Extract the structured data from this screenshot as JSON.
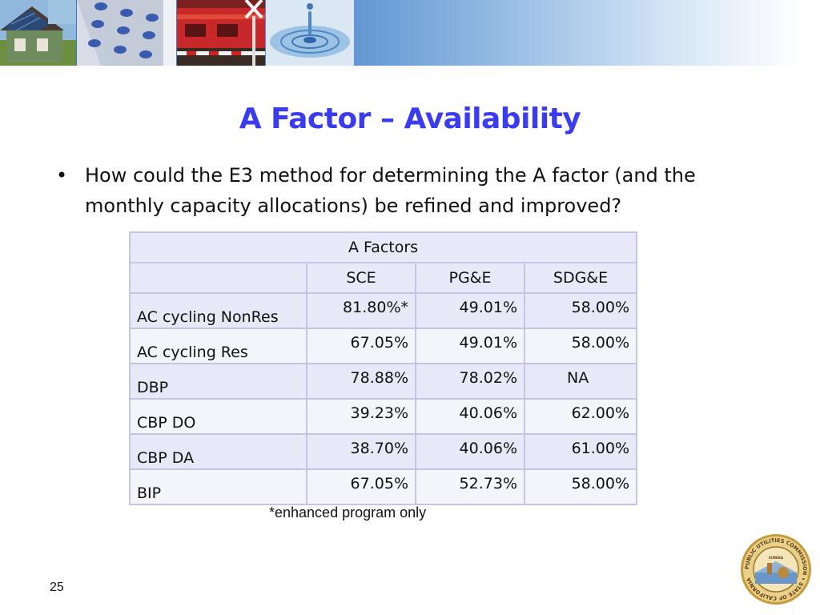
{
  "slide": {
    "title": "A Factor – Availability",
    "bullet": "How could the E3 method for determining the A factor (and the monthly capacity allocations) be refined and improved?",
    "footnote": "*enhanced program only",
    "page_number": "25"
  },
  "table": {
    "caption": "A Factors",
    "columns": [
      "",
      "SCE",
      "PG&E",
      "SDG&E"
    ],
    "rows": [
      {
        "label": "AC cycling NonRes",
        "values": [
          "81.80%*",
          "49.01%",
          "58.00%"
        ]
      },
      {
        "label": "AC cycling Res",
        "values": [
          "67.05%",
          "49.01%",
          "58.00%"
        ]
      },
      {
        "label": "DBP",
        "values": [
          "78.88%",
          "78.02%",
          "NA"
        ]
      },
      {
        "label": "CBP DO",
        "values": [
          "39.23%",
          "40.06%",
          "62.00%"
        ]
      },
      {
        "label": "CBP DA",
        "values": [
          "38.70%",
          "40.06%",
          "61.00%"
        ]
      },
      {
        "label": "BIP",
        "values": [
          "67.05%",
          "52.73%",
          "58.00%"
        ]
      }
    ]
  },
  "seal": {
    "outer_text": "PUBLIC UTILITIES COMMISSION • STATE OF CALIFORNIA",
    "motto": "EUREKA"
  },
  "colors": {
    "title": "#3b3bf0",
    "table_border": "#c9c3e8",
    "table_row_dark": "#e8e8f8",
    "table_row_light": "#f4f4fb",
    "banner_blue": "#2f6fb8"
  },
  "icons": {
    "bullet": "bullet-dot",
    "banner_photos": [
      "house-solar-photo",
      "phone-keypad-photo",
      "train-crossing-photo",
      "water-drop-photo"
    ],
    "seal": "cpuc-seal"
  }
}
